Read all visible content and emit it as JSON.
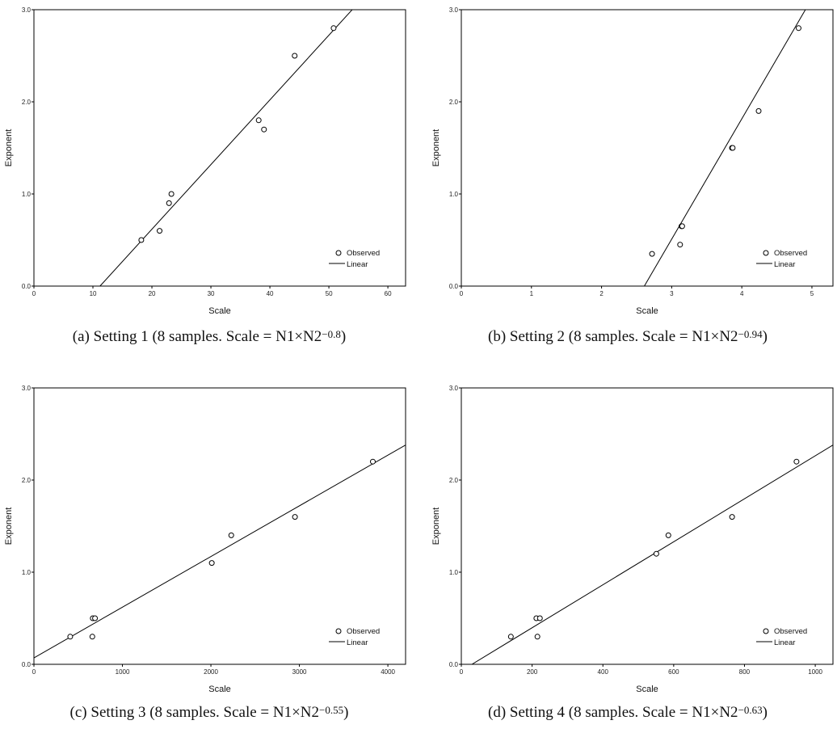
{
  "chart_data": [
    {
      "type": "scatter",
      "id": "a",
      "caption": {
        "label": "(a)",
        "setting": "Setting 1",
        "prefix": "(8 samples. Scale = N1×N2",
        "exponent": "−0.8",
        "suffix": ")"
      },
      "xlabel": "Scale",
      "ylabel": "Exponent",
      "xlim": [
        0,
        63
      ],
      "ylim": [
        0,
        3.0
      ],
      "xticks": [
        0,
        10,
        20,
        30,
        40,
        50,
        60
      ],
      "xtick_labels": [
        "0",
        "10",
        "20",
        "30",
        "40",
        "50",
        "60"
      ],
      "yticks": [
        0,
        1,
        2,
        3
      ],
      "ytick_labels": [
        "0.0",
        "1.0",
        "2.0",
        "3.0"
      ],
      "observed": [
        [
          18.2,
          0.5
        ],
        [
          21.3,
          0.6
        ],
        [
          22.9,
          0.9
        ],
        [
          23.3,
          1.0
        ],
        [
          38.1,
          1.8
        ],
        [
          39.0,
          1.7
        ],
        [
          44.2,
          2.5
        ],
        [
          50.8,
          2.8
        ]
      ],
      "fit_line": [
        [
          11.2,
          0.0
        ],
        [
          56.8,
          3.2
        ]
      ],
      "legend": {
        "observed": "Observed",
        "linear": "Linear",
        "position": "bottom-right"
      }
    },
    {
      "type": "scatter",
      "id": "b",
      "caption": {
        "label": "(b)",
        "setting": "Setting 2",
        "prefix": "(8 samples. Scale = N1×N2",
        "exponent": "−0.94",
        "suffix": ")"
      },
      "xlabel": "Scale",
      "ylabel": "Exponent",
      "xlim": [
        0,
        5.3
      ],
      "ylim": [
        0,
        3.0
      ],
      "xticks": [
        0,
        1,
        2,
        3,
        4,
        5
      ],
      "xtick_labels": [
        "0",
        "1",
        "2",
        "3",
        "4",
        "5"
      ],
      "yticks": [
        0,
        1,
        2,
        3
      ],
      "ytick_labels": [
        "0.0",
        "1.0",
        "2.0",
        "3.0"
      ],
      "observed": [
        [
          2.72,
          0.35
        ],
        [
          3.12,
          0.45
        ],
        [
          3.14,
          0.65
        ],
        [
          3.15,
          0.65
        ],
        [
          3.86,
          1.5
        ],
        [
          3.87,
          1.5
        ],
        [
          4.24,
          1.9
        ],
        [
          4.81,
          2.8
        ]
      ],
      "fit_line": [
        [
          2.61,
          0.0
        ],
        [
          5.06,
          3.2
        ]
      ],
      "legend": {
        "observed": "Observed",
        "linear": "Linear",
        "position": "bottom-right"
      }
    },
    {
      "type": "scatter",
      "id": "c",
      "caption": {
        "label": "(c)",
        "setting": "Setting 3",
        "prefix": "(8 samples. Scale = N1×N2",
        "exponent": "−0.55",
        "suffix": ")"
      },
      "xlabel": "Scale",
      "ylabel": "Exponent",
      "xlim": [
        0,
        4200
      ],
      "ylim": [
        0,
        3.0
      ],
      "xticks": [
        0,
        1000,
        2000,
        3000,
        4000
      ],
      "xtick_labels": [
        "0",
        "1000",
        "2000",
        "3000",
        "4000"
      ],
      "yticks": [
        0,
        1,
        2,
        3
      ],
      "ytick_labels": [
        "0.0",
        "1.0",
        "2.0",
        "3.0"
      ],
      "observed": [
        [
          410,
          0.3
        ],
        [
          660,
          0.3
        ],
        [
          665,
          0.5
        ],
        [
          690,
          0.5
        ],
        [
          2010,
          1.1
        ],
        [
          2230,
          1.4
        ],
        [
          2950,
          1.6
        ],
        [
          3830,
          2.2
        ]
      ],
      "fit_line": [
        [
          0,
          0.07
        ],
        [
          4200,
          2.38
        ]
      ],
      "legend": {
        "observed": "Observed",
        "linear": "Linear",
        "position": "bottom-right"
      }
    },
    {
      "type": "scatter",
      "id": "d",
      "caption": {
        "label": "(d)",
        "setting": "Setting 4",
        "prefix": "(8 samples. Scale = N1×N2",
        "exponent": "−0.63",
        "suffix": ")"
      },
      "xlabel": "Scale",
      "ylabel": "Exponent",
      "xlim": [
        0,
        1050
      ],
      "ylim": [
        0,
        3.0
      ],
      "xticks": [
        0,
        200,
        400,
        600,
        800,
        1000
      ],
      "xtick_labels": [
        "0",
        "200",
        "400",
        "600",
        "800",
        "1000"
      ],
      "yticks": [
        0,
        1,
        2,
        3
      ],
      "ytick_labels": [
        "0.0",
        "1.0",
        "2.0",
        "3.0"
      ],
      "observed": [
        [
          140,
          0.3
        ],
        [
          212,
          0.5
        ],
        [
          215,
          0.3
        ],
        [
          222,
          0.5
        ],
        [
          551,
          1.2
        ],
        [
          585,
          1.4
        ],
        [
          765,
          1.6
        ],
        [
          947,
          2.2
        ]
      ],
      "fit_line": [
        [
          30,
          0.0
        ],
        [
          1050,
          2.38
        ]
      ],
      "legend": {
        "observed": "Observed",
        "linear": "Linear",
        "position": "bottom-right"
      }
    }
  ]
}
